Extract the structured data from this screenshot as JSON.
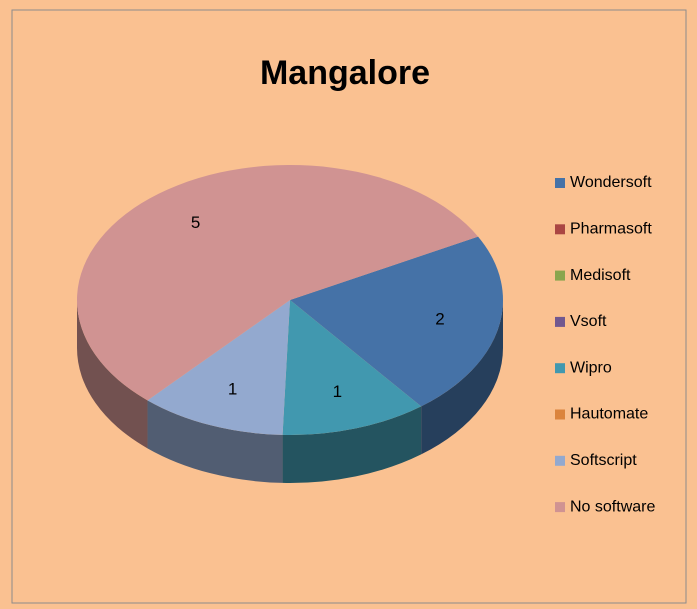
{
  "chart_data": {
    "type": "pie",
    "title": "Mangalore",
    "categories": [
      "Wondersoft",
      "Pharmasoft",
      "Medisoft",
      "Vsoft",
      "Wipro",
      "Hautomate",
      "Softscript",
      "No software"
    ],
    "values": [
      2,
      0,
      0,
      0,
      1,
      0,
      1,
      5
    ],
    "colors": [
      "#4572a7",
      "#aa4643",
      "#89a54e",
      "#71588f",
      "#4198af",
      "#db843d",
      "#93a9cf",
      "#d09392"
    ],
    "legend": "right"
  }
}
